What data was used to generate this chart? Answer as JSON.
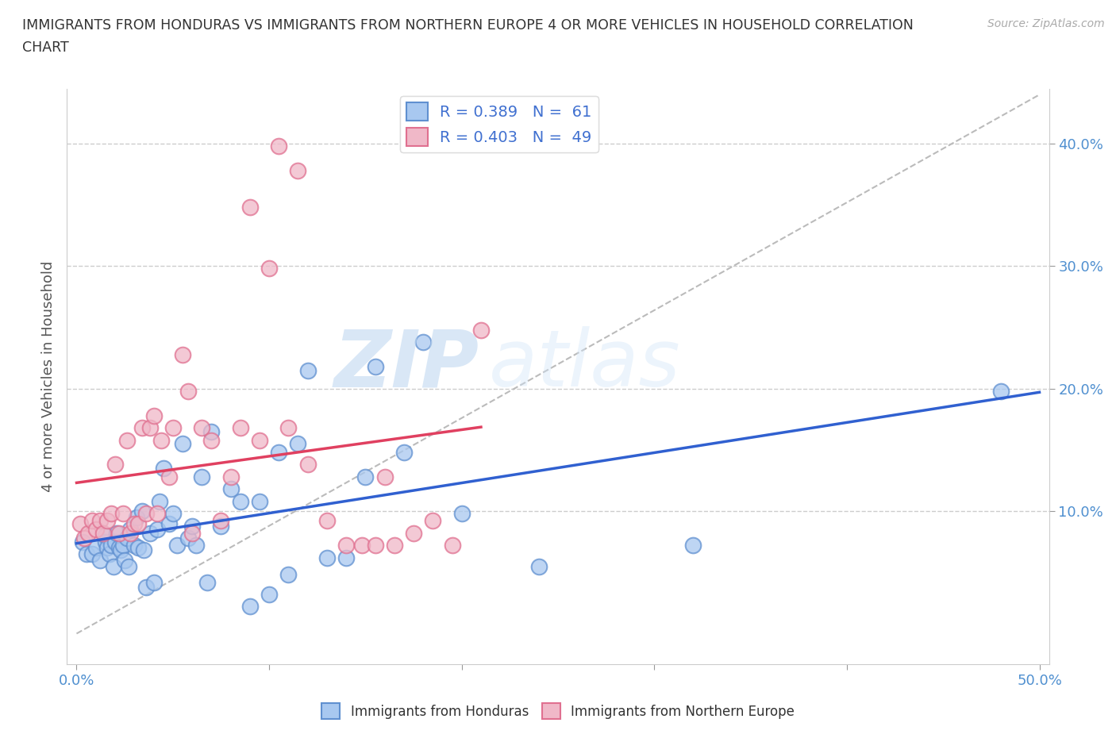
{
  "title_line1": "IMMIGRANTS FROM HONDURAS VS IMMIGRANTS FROM NORTHERN EUROPE 4 OR MORE VEHICLES IN HOUSEHOLD CORRELATION",
  "title_line2": "CHART",
  "source": "Source: ZipAtlas.com",
  "ylabel": "4 or more Vehicles in Household",
  "xlim": [
    -0.005,
    0.505
  ],
  "ylim": [
    -0.025,
    0.445
  ],
  "xticks": [
    0.0,
    0.1,
    0.2,
    0.3,
    0.4,
    0.5
  ],
  "xticklabels": [
    "0.0%",
    "",
    "",
    "",
    "",
    "50.0%"
  ],
  "yticks": [
    0.1,
    0.2,
    0.3,
    0.4
  ],
  "yticklabels": [
    "10.0%",
    "20.0%",
    "30.0%",
    "40.0%"
  ],
  "watermark_zip": "ZIP",
  "watermark_atlas": "atlas",
  "blue_color": "#a8c8f0",
  "pink_color": "#f0b8c8",
  "blue_edge": "#6090d0",
  "pink_edge": "#e07090",
  "blue_line_color": "#3060d0",
  "pink_line_color": "#e04060",
  "grey_line_color": "#bbbbbb",
  "tick_label_color": "#5090d0",
  "honduras_x": [
    0.003,
    0.005,
    0.008,
    0.01,
    0.012,
    0.015,
    0.015,
    0.016,
    0.017,
    0.018,
    0.019,
    0.02,
    0.021,
    0.022,
    0.023,
    0.024,
    0.025,
    0.026,
    0.027,
    0.028,
    0.03,
    0.031,
    0.032,
    0.034,
    0.035,
    0.036,
    0.038,
    0.04,
    0.042,
    0.043,
    0.045,
    0.048,
    0.05,
    0.052,
    0.055,
    0.058,
    0.06,
    0.062,
    0.065,
    0.068,
    0.07,
    0.075,
    0.08,
    0.085,
    0.09,
    0.095,
    0.1,
    0.105,
    0.11,
    0.115,
    0.12,
    0.13,
    0.14,
    0.15,
    0.155,
    0.17,
    0.18,
    0.2,
    0.24,
    0.32,
    0.48
  ],
  "honduras_y": [
    0.075,
    0.065,
    0.065,
    0.07,
    0.06,
    0.075,
    0.08,
    0.07,
    0.065,
    0.072,
    0.055,
    0.075,
    0.082,
    0.07,
    0.068,
    0.072,
    0.06,
    0.078,
    0.055,
    0.085,
    0.072,
    0.095,
    0.07,
    0.1,
    0.068,
    0.038,
    0.082,
    0.042,
    0.085,
    0.108,
    0.135,
    0.09,
    0.098,
    0.072,
    0.155,
    0.078,
    0.088,
    0.072,
    0.128,
    0.042,
    0.165,
    0.088,
    0.118,
    0.108,
    0.022,
    0.108,
    0.032,
    0.148,
    0.048,
    0.155,
    0.215,
    0.062,
    0.062,
    0.128,
    0.218,
    0.148,
    0.238,
    0.098,
    0.055,
    0.072,
    0.198
  ],
  "northern_europe_x": [
    0.002,
    0.004,
    0.006,
    0.008,
    0.01,
    0.012,
    0.014,
    0.016,
    0.018,
    0.02,
    0.022,
    0.024,
    0.026,
    0.028,
    0.03,
    0.032,
    0.034,
    0.036,
    0.038,
    0.04,
    0.042,
    0.044,
    0.048,
    0.05,
    0.055,
    0.058,
    0.06,
    0.065,
    0.07,
    0.075,
    0.08,
    0.085,
    0.09,
    0.095,
    0.1,
    0.105,
    0.11,
    0.115,
    0.12,
    0.13,
    0.14,
    0.148,
    0.155,
    0.16,
    0.165,
    0.175,
    0.185,
    0.195,
    0.21
  ],
  "northern_europe_y": [
    0.09,
    0.078,
    0.082,
    0.092,
    0.085,
    0.092,
    0.082,
    0.092,
    0.098,
    0.138,
    0.082,
    0.098,
    0.158,
    0.082,
    0.09,
    0.09,
    0.168,
    0.098,
    0.168,
    0.178,
    0.098,
    0.158,
    0.128,
    0.168,
    0.228,
    0.198,
    0.082,
    0.168,
    0.158,
    0.092,
    0.128,
    0.168,
    0.348,
    0.158,
    0.298,
    0.398,
    0.168,
    0.378,
    0.138,
    0.092,
    0.072,
    0.072,
    0.072,
    0.128,
    0.072,
    0.082,
    0.092,
    0.072,
    0.248
  ]
}
